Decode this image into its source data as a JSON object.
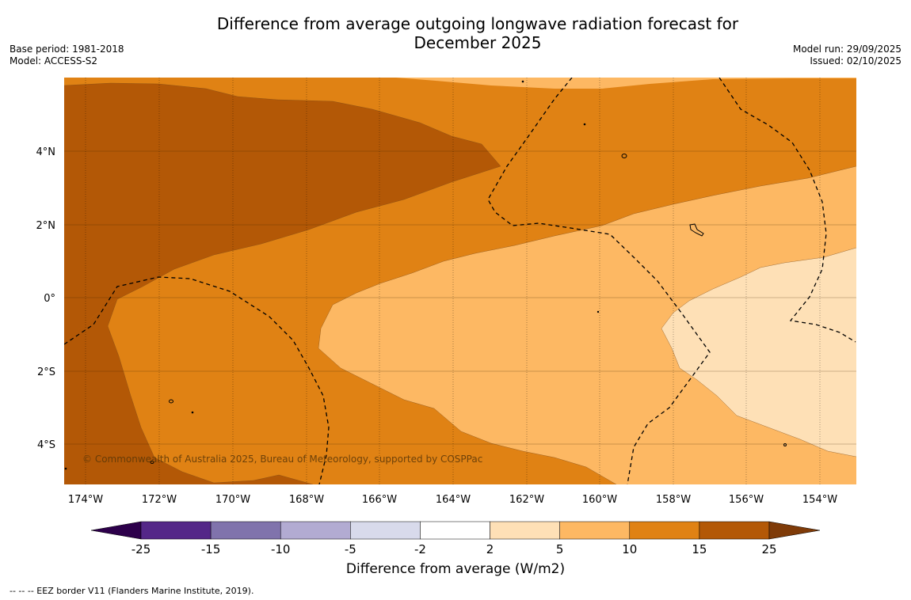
{
  "title": {
    "line1": "Difference from average outgoing longwave radiation forecast for",
    "line2": "December 2025"
  },
  "meta_left": {
    "base_period": "Base period: 1981-2018",
    "model": "Model: ACCESS-S2"
  },
  "meta_right": {
    "model_run": "Model run: 29/09/2025",
    "issued": "Issued: 02/10/2025"
  },
  "map": {
    "lat_labels": [
      "4°N",
      "2°N",
      "0°",
      "2°S",
      "4°S"
    ],
    "lon_labels": [
      "174°W",
      "172°W",
      "170°W",
      "168°W",
      "166°W",
      "164°W",
      "162°W",
      "160°W",
      "158°W",
      "156°W",
      "154°W"
    ],
    "copyright": "© Commonwealth of Australia 2025, Bureau of Meteorology, supported by COSPPac"
  },
  "colorbar": {
    "ticks": [
      "-25",
      "-15",
      "-10",
      "-5",
      "-2",
      "2",
      "5",
      "10",
      "15",
      "25"
    ],
    "colors": [
      "#542788",
      "#8073ac",
      "#b2abd2",
      "#d8daeb",
      "#ffffff",
      "#fee0b6",
      "#fdb863",
      "#e08214",
      "#b35806"
    ],
    "low_extend_color": "#2d004b",
    "high_extend_color": "#7f3b08",
    "title": "Difference from average (W/m2)"
  },
  "legend_note": "-- -- -- EEZ border V11 (Flanders Marine Institute, 2019).",
  "colors": {
    "level_15_25": "#b35806",
    "level_10_15": "#e08214",
    "level_5_10": "#fdb863",
    "level_2_5": "#fee0b6"
  }
}
